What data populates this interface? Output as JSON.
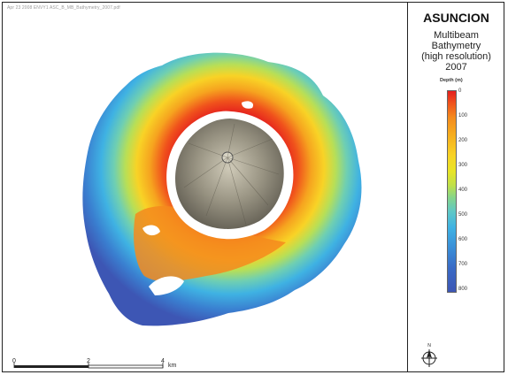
{
  "header_text": "Apr 23 2008   ENVY1   ASC_B_MB_Bathymetry_2007.pdf",
  "legend": {
    "title": "ASUNCION",
    "subtitle_lines": [
      "Multibeam",
      "Bathymetry",
      "(high resolution)",
      "2007"
    ],
    "colorbar_label": "Depth (m)",
    "ticks": [
      "0",
      "100",
      "200",
      "300",
      "400",
      "500",
      "600",
      "700",
      "800"
    ],
    "colors": {
      "shallow": "#e41e1e",
      "mid_orange": "#f48a1d",
      "mid_yellow": "#f8d326",
      "mid_cyan": "#5fc8c6",
      "deep": "#3d56b4"
    }
  },
  "scale_bar": {
    "labels": [
      "0",
      "2",
      "4"
    ],
    "unit": "km"
  },
  "north_arrow": {
    "label": "N",
    "icon": "north-arrow-icon"
  },
  "map": {
    "island_name": "ASUNCION",
    "features": [
      "island-summit-crater",
      "bathymetry-rings"
    ]
  }
}
